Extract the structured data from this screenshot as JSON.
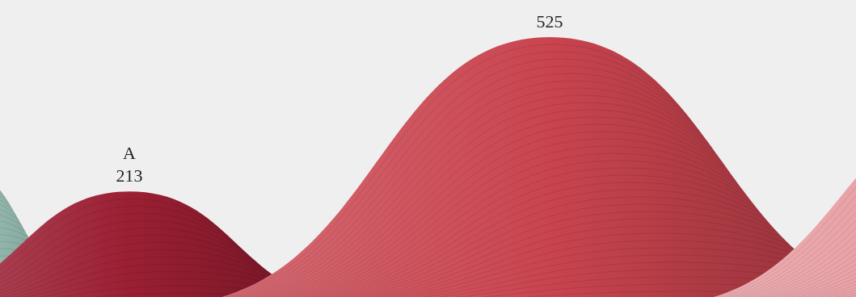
{
  "chart_data": {
    "type": "area",
    "categories": [
      "A",
      null
    ],
    "values": [
      213,
      525
    ],
    "colors": [
      "#9b1f33",
      "#c9444f"
    ],
    "ylim": [
      0,
      600
    ],
    "yticks": [
      0,
      600
    ],
    "grid": false,
    "tick_labels": false,
    "data_labels": true
  }
}
